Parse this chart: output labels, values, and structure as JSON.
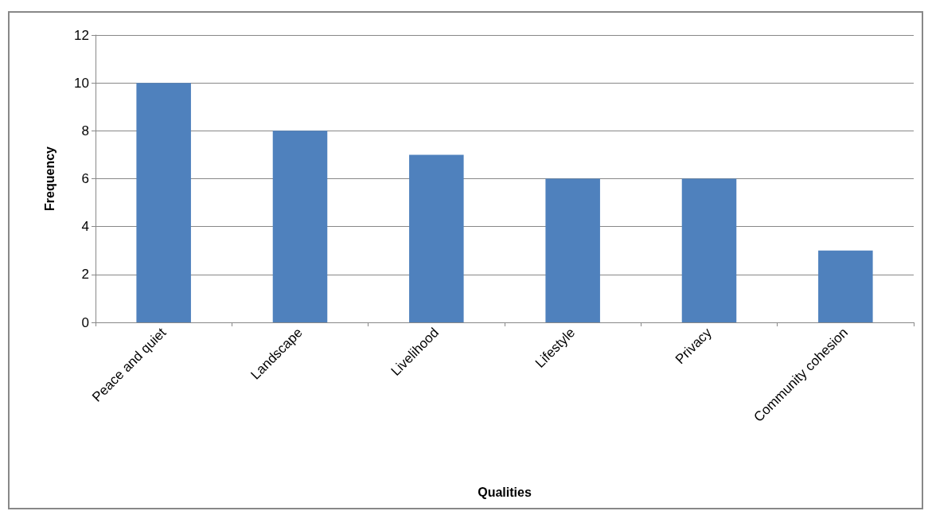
{
  "chart_data": {
    "type": "bar",
    "xlabel": "Qualities",
    "ylabel": "Frequency",
    "categories": [
      "Peace and quiet",
      "Landscape",
      "Livelihood",
      "Lifestyle",
      "Privacy",
      "Community cohesion"
    ],
    "values": [
      10,
      8,
      7,
      6,
      6,
      3
    ],
    "color": "#4f81bd",
    "ylim": [
      0,
      12
    ],
    "yticks": [
      0,
      2,
      4,
      6,
      8,
      10,
      12
    ],
    "grid": "y"
  }
}
